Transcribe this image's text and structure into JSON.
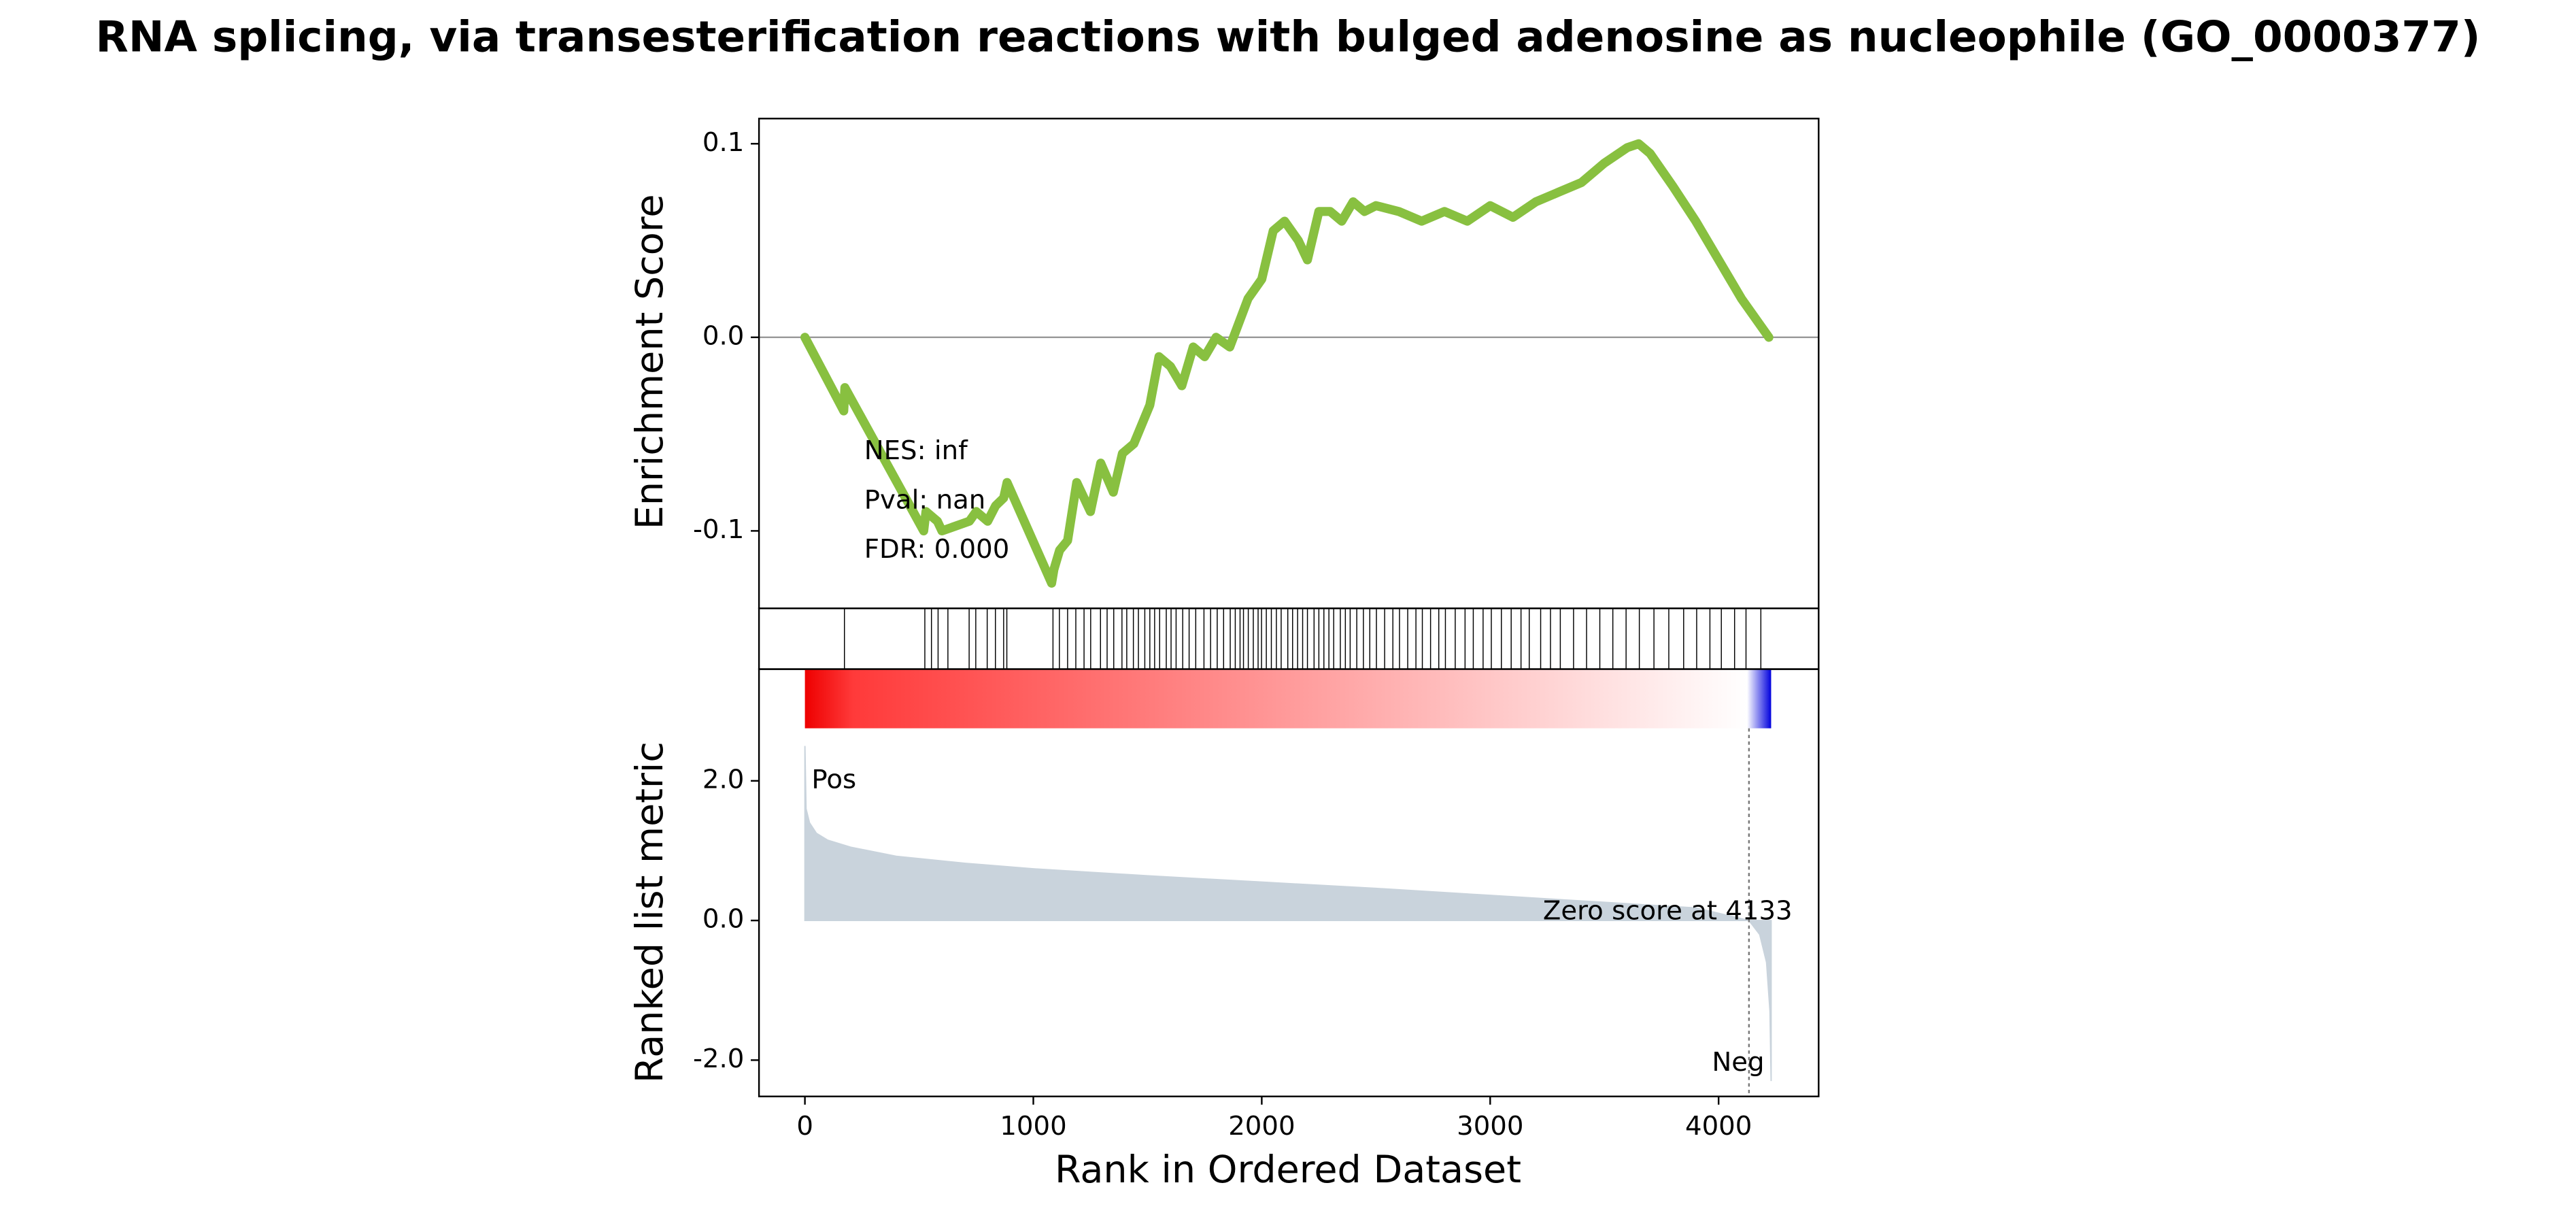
{
  "chart_data": [
    {
      "type": "line",
      "title": "RNA splicing, via transesterification reactions with bulged adenosine as nucleophile (GO_0000377)",
      "ylabel": "Enrichment Score",
      "color": "#88c040",
      "x": [
        0,
        170,
        175,
        520,
        530,
        580,
        600,
        720,
        750,
        800,
        835,
        870,
        885,
        1080,
        1090,
        1115,
        1150,
        1190,
        1250,
        1295,
        1350,
        1390,
        1440,
        1510,
        1550,
        1600,
        1650,
        1700,
        1750,
        1800,
        1860,
        1940,
        2000,
        2050,
        2100,
        2160,
        2200,
        2250,
        2300,
        2350,
        2400,
        2450,
        2500,
        2600,
        2700,
        2800,
        2900,
        3000,
        3100,
        3200,
        3300,
        3400,
        3500,
        3600,
        3650,
        3700,
        3800,
        3900,
        4000,
        4100,
        4220
      ],
      "values": [
        0.0,
        -0.038,
        -0.026,
        -0.1,
        -0.09,
        -0.095,
        -0.1,
        -0.095,
        -0.09,
        -0.095,
        -0.087,
        -0.083,
        -0.075,
        -0.127,
        -0.12,
        -0.11,
        -0.105,
        -0.075,
        -0.09,
        -0.065,
        -0.08,
        -0.06,
        -0.055,
        -0.035,
        -0.01,
        -0.015,
        -0.025,
        -0.005,
        -0.01,
        0.0,
        -0.005,
        0.02,
        0.03,
        0.055,
        0.06,
        0.05,
        0.04,
        0.065,
        0.065,
        0.06,
        0.07,
        0.065,
        0.068,
        0.065,
        0.06,
        0.065,
        0.06,
        0.068,
        0.062,
        0.07,
        0.075,
        0.08,
        0.09,
        0.098,
        0.1,
        0.095,
        0.078,
        0.06,
        0.04,
        0.02,
        0.0
      ],
      "xlim": [
        -201,
        4438
      ],
      "ylim": [
        -0.14,
        0.113
      ],
      "yticks": [
        -0.1,
        {
          "value": 0,
          "label": "0.0"
        },
        0.1
      ],
      "annotations": [
        "NES: inf",
        "Pval: nan",
        "FDR: 0.000"
      ]
    },
    {
      "type": "hits",
      "xlim": [
        -201,
        4438
      ],
      "hits": [
        173,
        525,
        554,
        583,
        626,
        719,
        748,
        798,
        834,
        870,
        884,
        1086,
        1114,
        1150,
        1186,
        1222,
        1251,
        1294,
        1323,
        1352,
        1388,
        1409,
        1438,
        1460,
        1488,
        1510,
        1531,
        1553,
        1582,
        1603,
        1625,
        1654,
        1682,
        1711,
        1747,
        1776,
        1805,
        1833,
        1862,
        1884,
        1905,
        1920,
        1941,
        1963,
        1984,
        1999,
        2020,
        2042,
        2064,
        2085,
        2114,
        2135,
        2157,
        2179,
        2200,
        2229,
        2250,
        2272,
        2294,
        2315,
        2344,
        2366,
        2387,
        2416,
        2445,
        2473,
        2502,
        2538,
        2574,
        2603,
        2639,
        2675,
        2703,
        2739,
        2775,
        2804,
        2847,
        2890,
        2926,
        2969,
        3005,
        3049,
        3092,
        3135,
        3171,
        3221,
        3264,
        3307,
        3365,
        3422,
        3480,
        3537,
        3595,
        3653,
        3717,
        3782,
        3847,
        3904,
        3962,
        4012,
        4070,
        4120,
        4185
      ]
    },
    {
      "type": "area",
      "ylabel": "Ranked list metric",
      "xlabel": "Rank in Ordered Dataset",
      "color": "#c9d3dc",
      "x": [
        0,
        5,
        20,
        50,
        100,
        200,
        400,
        700,
        1000,
        1500,
        2000,
        2500,
        3000,
        3500,
        3900,
        4133,
        4180,
        4210,
        4225,
        4230
      ],
      "values": [
        2.5,
        1.6,
        1.4,
        1.25,
        1.15,
        1.05,
        0.92,
        0.82,
        0.74,
        0.64,
        0.55,
        0.46,
        0.36,
        0.26,
        0.18,
        0.0,
        -0.2,
        -0.6,
        -1.3,
        -2.3
      ],
      "xlim": [
        -201,
        4438
      ],
      "ylim": [
        -2.52,
        3.6
      ],
      "xticks": [
        0,
        1000,
        2000,
        3000,
        4000
      ],
      "yticks": [
        {
          "value": -2,
          "label": "-2.0"
        },
        {
          "value": 0,
          "label": "0.0"
        },
        {
          "value": 2,
          "label": "2.0"
        }
      ],
      "zero_score_rank": 4133,
      "zero_score_label": "Zero score at 4133",
      "pos_label": "Pos",
      "pos_color": "#d40000",
      "neg_label": "Neg",
      "neg_color": "#0000cc"
    }
  ]
}
